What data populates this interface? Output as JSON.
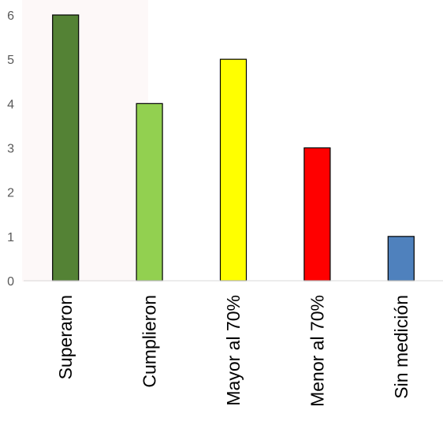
{
  "chart_data": {
    "type": "bar",
    "categories": [
      "Superaron",
      "Cumplieron",
      "Mayor al 70%",
      "Menor al 70%",
      "Sin medición"
    ],
    "values": [
      6,
      4,
      5,
      3,
      1
    ],
    "colors": [
      "#548235",
      "#92d050",
      "#ffff00",
      "#ff0000",
      "#4f81bd"
    ],
    "ylim": [
      0,
      6
    ],
    "yticks": [
      "0",
      "1",
      "2",
      "3",
      "4",
      "5",
      "6"
    ],
    "grid": false,
    "legend": "none"
  }
}
